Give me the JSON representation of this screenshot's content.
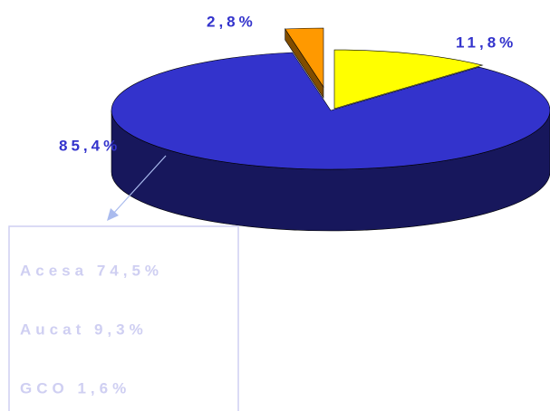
{
  "chart_data": {
    "type": "pie",
    "values": [
      11.8,
      85.4,
      2.8
    ],
    "value_labels": [
      "11,8%",
      "85,4%",
      "2,8%"
    ],
    "colors": [
      "#ffff00",
      "#3333cc",
      "#ff9900"
    ],
    "annotations": [
      "Acesa 74,5%",
      "Aucat  9,3%",
      "GCO   1,6%"
    ]
  }
}
